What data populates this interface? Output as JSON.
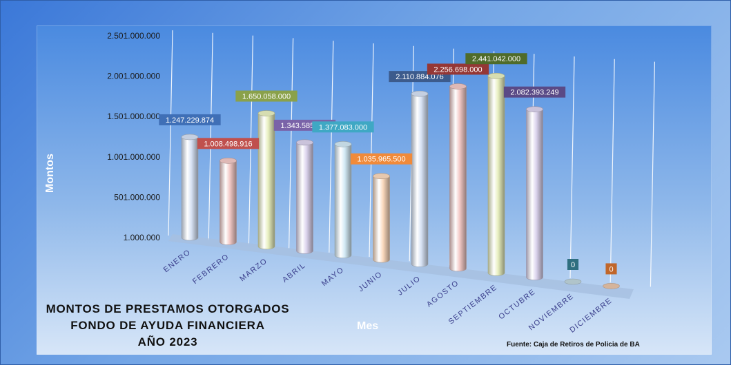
{
  "chart_data": {
    "type": "bar",
    "style": "3d-cylinder",
    "title_lines": [
      "MONTOS  DE  PRESTAMOS  OTORGADOS",
      "FONDO  DE  AYUDA  FINANCIERA",
      "AÑO   2023"
    ],
    "xlabel": "Mes",
    "ylabel": "Montos",
    "source": "Fuente: Caja de Retiros de Policia de BA",
    "ylim": [
      1000000,
      2501000000
    ],
    "yticks": [
      1000000,
      501000000,
      1001000000,
      1501000000,
      2001000000,
      2501000000
    ],
    "ytick_labels": [
      "1.000.000",
      "501.000.000",
      "1.001.000.000",
      "1.501.000.000",
      "2.001.000.000",
      "2.501.000.000"
    ],
    "grid": true,
    "categories": [
      "ENERO",
      "FEBRERO",
      "MARZO",
      "ABRIL",
      "MAYO",
      "JUNIO",
      "JULIO",
      "AGOSTO",
      "SEPTIEMBRE",
      "OCTUBRE",
      "NOVIEMBRE",
      "DICIEMBRE"
    ],
    "values": [
      1247229874,
      1008498916,
      1650058000,
      1343585229,
      1377083000,
      1035965500,
      2110884076,
      2256698000,
      2441042000,
      2082393249,
      0,
      0
    ],
    "data_labels": [
      "1.247.229.874",
      "1.008.498.916",
      "1.650.058.000",
      "1.343.585.229",
      "1.377.083.000",
      "1.035.965.500",
      "2.110.884.076",
      "2.256.698.000",
      "2.441.042.000",
      "2.082.393.249",
      "0",
      "0"
    ],
    "bar_colors": [
      "#d6e1f3",
      "#f2c9c6",
      "#e9f0c0",
      "#dcd4ee",
      "#d3eaf5",
      "#fbd9bd",
      "#d6e1f3",
      "#f2c9c6",
      "#e9f0c0",
      "#dcd4ee",
      "#cfe6ee",
      "#fbd4b6"
    ],
    "label_colors": [
      "#3f6fb6",
      "#c0504d",
      "#8aa14a",
      "#7a63a8",
      "#3fa8c4",
      "#f08a3a",
      "#3c5b8c",
      "#953735",
      "#4f6b2a",
      "#5a4a86",
      "#2f6f80",
      "#c0662a"
    ]
  }
}
